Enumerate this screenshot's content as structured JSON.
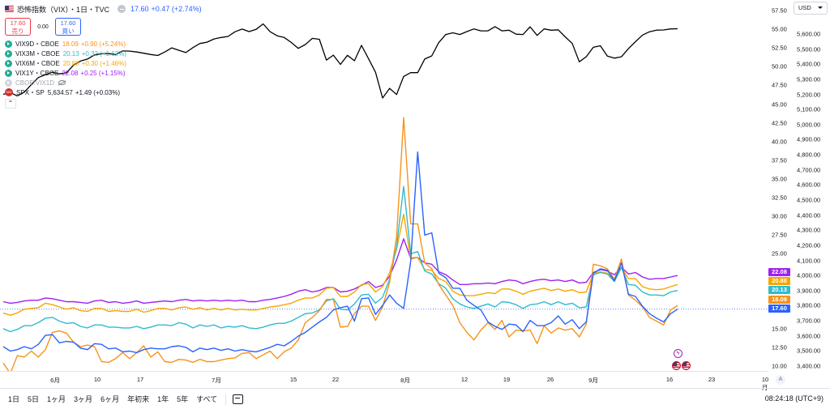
{
  "header": {
    "title": "恐怖指数（VIX）・1日・TVC",
    "price": "17.60",
    "change": "+0.47 (+2.74%)",
    "sell_price": "17.60",
    "sell_label": "売り",
    "spread": "0.00",
    "buy_price": "17.60",
    "buy_label": "買い"
  },
  "legend": [
    {
      "name": "VIX9D・CBOE",
      "value": "18.09",
      "change": "+0.90 (+5.24%)",
      "color": "#f7931a"
    },
    {
      "name": "VIX3M・CBOE",
      "value": "20.13",
      "change": "+0.32 (+1.62%)",
      "color": "#2ebccd"
    },
    {
      "name": "VIX6M・CBOE",
      "value": "20.88",
      "change": "+0.30 (+1.46%)",
      "color": "#f7a600"
    },
    {
      "name": "VIX1Y・CBOE",
      "value": "22.08",
      "change": "+0.25 (+1.15%)",
      "color": "#a020f0"
    }
  ],
  "hidden_symbol": "CBOE:VIX1D",
  "spx": {
    "badge": "500",
    "name": "SPX・SP",
    "value": "5,634.57",
    "change": "+1.49 (+0.03%)"
  },
  "collapse_glyph": "⌃",
  "price_axis": {
    "currency": "USD",
    "left_ticks": [
      "57.50",
      "55.00",
      "52.50",
      "50.00",
      "47.50",
      "45.00",
      "42.50",
      "40.00",
      "37.50",
      "35.00",
      "32.50",
      "30.00",
      "27.50",
      "25.00",
      "22.50",
      "20.00",
      "17.50",
      "15.00",
      "12.50",
      "10.00"
    ],
    "right_ticks": [
      "5,600.00",
      "5,500.00",
      "5,400.00",
      "5,300.00",
      "5,200.00",
      "5,100.00",
      "5,000.00",
      "4,900.00",
      "4,800.00",
      "4,700.00",
      "4,600.00",
      "4,500.00",
      "4,400.00",
      "4,300.00",
      "4,200.00",
      "4,100.00",
      "4,000.00",
      "3,900.00",
      "3,800.00",
      "3,700.00",
      "3,600.00",
      "3,500.00",
      "3,400.00"
    ],
    "top_partial": "5,700.00",
    "tags": [
      {
        "text": "22.08",
        "color": "#a020f0"
      },
      {
        "text": "20.88",
        "color": "#f7a600"
      },
      {
        "text": "20.13",
        "color": "#2ebccd"
      },
      {
        "text": "18.09",
        "color": "#f7931a"
      },
      {
        "text": "17.60",
        "color": "#2962ff"
      }
    ]
  },
  "time_axis": [
    "6月",
    "10",
    "17",
    "7月",
    "15",
    "22",
    "8月",
    "12",
    "19",
    "26",
    "9月",
    "16",
    "23",
    "10月"
  ],
  "auto_scale": "A",
  "bottom_bar": {
    "ranges": [
      "1日",
      "5日",
      "1ヶ月",
      "3ヶ月",
      "6ヶ月",
      "年初来",
      "1年",
      "5年",
      "すべて"
    ],
    "clock": "08:24:18 (UTC+9)"
  },
  "event_glyph": "ϟ",
  "chart_data": {
    "type": "line",
    "x_labels": [
      "6月",
      "10",
      "17",
      "7月",
      "15",
      "22",
      "8月",
      "12",
      "19",
      "26",
      "9月",
      "16",
      "23",
      "10月"
    ],
    "y_left_range": [
      9,
      58.5
    ],
    "y_right_range": [
      3380,
      5720
    ],
    "series": [
      {
        "name": "VIX",
        "color": "#2962ff",
        "values": [
          12.6,
          12.0,
          12.2,
          12.6,
          12.3,
          12.9,
          14.1,
          14.2,
          13.1,
          13.3,
          13.2,
          12.4,
          12.2,
          13.0,
          12.9,
          12.3,
          12.4,
          11.9,
          12.0,
          11.8,
          12.2,
          12.4,
          12.3,
          12.3,
          12.6,
          12.7,
          12.5,
          11.9,
          12.4,
          12.2,
          12.4,
          12.1,
          12.3,
          12.0,
          12.2,
          12.0,
          11.9,
          12.2,
          12.5,
          12.9,
          12.7,
          13.3,
          14.0,
          14.5,
          15.2,
          15.9,
          16.5,
          17.5,
          17.8,
          18.0,
          16.0,
          19.0,
          19.1,
          16.9,
          18.1,
          19.5,
          18.4,
          17.7,
          24.0,
          38.6,
          27.5,
          27.8,
          22.4,
          21.8,
          20.4,
          20.4,
          18.8,
          18.1,
          17.5,
          15.9,
          15.3,
          14.9,
          15.6,
          15.5,
          14.6,
          16.1,
          15.4,
          15.4,
          15.8,
          16.7,
          15.6,
          16.2,
          15.0,
          15.9,
          22.4,
          23.0,
          22.8,
          21.4,
          23.8,
          19.6,
          19.3,
          18.0,
          17.0,
          16.4,
          15.9,
          17.0,
          17.6
        ],
        "axis": "left"
      },
      {
        "name": "VIX9D",
        "color": "#f7931a",
        "values": [
          10.4,
          9.0,
          11.4,
          11.2,
          12.0,
          11.2,
          12.2,
          14.5,
          14.7,
          14.4,
          13.2,
          12.6,
          12.8,
          12.6,
          10.6,
          10.5,
          11.0,
          11.8,
          11.0,
          11.8,
          12.7,
          11.2,
          11.9,
          10.6,
          10.5,
          10.9,
          10.8,
          10.5,
          10.9,
          10.6,
          10.6,
          10.8,
          11.0,
          11.1,
          11.7,
          11.8,
          11.0,
          11.5,
          12.0,
          11.0,
          11.9,
          12.4,
          13.5,
          15.8,
          16.5,
          17.4,
          18.9,
          18.9,
          15.2,
          15.3,
          17.0,
          18.0,
          18.0,
          16.1,
          17.9,
          21.2,
          27.3,
          43.2,
          29.0,
          29.0,
          23.8,
          23.0,
          20.9,
          19.5,
          18.1,
          15.8,
          14.5,
          13.5,
          14.8,
          15.8,
          14.9,
          16.1,
          13.9,
          14.8,
          14.7,
          14.8,
          13.0,
          15.4,
          14.4,
          15.1,
          14.8,
          15.0,
          13.9,
          15.6,
          23.6,
          23.4,
          23.0,
          21.6,
          24.3,
          19.5,
          18.8,
          17.9,
          16.5,
          16.0,
          15.5,
          17.5,
          18.1
        ],
        "axis": "left"
      },
      {
        "name": "VIX3M",
        "color": "#2ebccd",
        "values": [
          15.0,
          14.6,
          14.9,
          15.4,
          15.4,
          15.8,
          16.4,
          16.5,
          16.0,
          15.7,
          15.8,
          15.3,
          15.1,
          15.5,
          15.5,
          15.2,
          15.2,
          15.1,
          15.1,
          15.3,
          15.0,
          15.2,
          15.5,
          15.5,
          15.4,
          15.8,
          15.6,
          15.1,
          15.5,
          15.3,
          15.5,
          15.1,
          15.3,
          15.2,
          15.4,
          15.1,
          15.0,
          15.2,
          15.5,
          15.7,
          15.7,
          16.0,
          16.5,
          17.0,
          17.1,
          17.5,
          18.7,
          19.0,
          17.6,
          17.5,
          18.3,
          19.5,
          19.6,
          18.4,
          19.2,
          21.6,
          26.0,
          34.0,
          25.0,
          25.3,
          22.7,
          22.3,
          21.0,
          20.4,
          19.0,
          18.3,
          17.9,
          17.7,
          18.0,
          18.3,
          17.9,
          18.6,
          18.5,
          18.2,
          17.7,
          18.2,
          18.3,
          18.6,
          18.2,
          18.6,
          18.2,
          18.4,
          17.8,
          17.9,
          22.2,
          22.5,
          22.3,
          21.3,
          23.2,
          20.9,
          20.8,
          19.9,
          19.5,
          19.5,
          19.4,
          19.9,
          20.1
        ],
        "axis": "left"
      },
      {
        "name": "VIX6M",
        "color": "#f7a600",
        "values": [
          17.1,
          16.8,
          17.1,
          17.6,
          17.7,
          17.8,
          18.4,
          18.2,
          17.9,
          17.6,
          17.8,
          17.4,
          17.3,
          17.7,
          17.7,
          17.3,
          17.4,
          17.3,
          17.3,
          17.6,
          17.2,
          17.4,
          17.7,
          17.7,
          17.5,
          17.8,
          17.9,
          17.6,
          17.8,
          17.5,
          17.7,
          17.5,
          17.7,
          17.5,
          17.6,
          17.5,
          17.5,
          17.7,
          17.9,
          18.0,
          18.2,
          18.4,
          18.8,
          19.1,
          19.1,
          19.5,
          20.4,
          20.5,
          19.3,
          19.3,
          19.9,
          20.9,
          21.0,
          19.9,
          20.6,
          22.5,
          25.6,
          30.3,
          24.3,
          24.5,
          22.9,
          22.8,
          21.7,
          21.3,
          20.0,
          19.5,
          19.4,
          19.4,
          19.6,
          19.8,
          19.7,
          20.3,
          20.3,
          20.0,
          19.6,
          20.0,
          20.2,
          20.4,
          20.1,
          20.3,
          20.0,
          20.2,
          19.8,
          19.9,
          22.4,
          22.6,
          22.4,
          21.5,
          23.1,
          21.7,
          21.7,
          20.6,
          20.3,
          20.2,
          20.3,
          20.6,
          20.9
        ],
        "axis": "left"
      },
      {
        "name": "VIX1Y",
        "color": "#a020f0",
        "values": [
          18.6,
          18.4,
          18.5,
          18.7,
          18.8,
          18.8,
          19.1,
          19.0,
          18.8,
          18.6,
          18.6,
          18.5,
          18.4,
          18.7,
          18.8,
          18.5,
          18.6,
          18.4,
          18.5,
          18.7,
          18.4,
          18.5,
          18.6,
          18.7,
          18.6,
          18.8,
          18.9,
          18.7,
          18.8,
          18.7,
          18.8,
          18.7,
          18.8,
          18.7,
          18.8,
          18.6,
          18.6,
          18.8,
          18.9,
          19.1,
          19.3,
          19.6,
          20.0,
          20.2,
          19.9,
          20.1,
          20.5,
          20.5,
          19.9,
          20.0,
          20.3,
          20.8,
          21.3,
          20.5,
          20.8,
          22.0,
          24.2,
          27.0,
          24.4,
          24.5,
          23.8,
          23.6,
          22.6,
          22.2,
          21.5,
          20.9,
          20.9,
          21.0,
          21.0,
          21.1,
          21.0,
          21.3,
          21.5,
          21.4,
          21.0,
          21.3,
          21.5,
          21.6,
          21.4,
          21.5,
          21.3,
          21.5,
          21.1,
          21.2,
          22.5,
          22.9,
          22.7,
          22.2,
          23.2,
          22.3,
          22.5,
          21.9,
          21.6,
          21.7,
          21.7,
          21.9,
          22.1
        ],
        "axis": "left"
      },
      {
        "name": "SPX",
        "color": "#000000",
        "values": [
          5200,
          5212,
          5190,
          5215,
          5265,
          5312,
          5330,
          5347,
          5336,
          5343,
          5394,
          5421,
          5434,
          5462,
          5469,
          5470,
          5464,
          5488,
          5487,
          5481,
          5473,
          5464,
          5458,
          5481,
          5508,
          5492,
          5477,
          5510,
          5537,
          5546,
          5567,
          5577,
          5584,
          5615,
          5633,
          5616,
          5631,
          5667,
          5615,
          5588,
          5577,
          5544,
          5505,
          5530,
          5571,
          5565,
          5427,
          5460,
          5399,
          5459,
          5423,
          5525,
          5436,
          5347,
          5176,
          5240,
          5199,
          5319,
          5344,
          5344,
          5434,
          5455,
          5543,
          5597,
          5608,
          5597,
          5616,
          5634,
          5621,
          5621,
          5649,
          5621,
          5625,
          5599,
          5597,
          5648,
          5591,
          5634,
          5625,
          5628,
          5581,
          5537,
          5416,
          5450,
          5512,
          5522,
          5454,
          5440,
          5449,
          5503,
          5549,
          5593,
          5615,
          5626,
          5627,
          5634,
          5635
        ],
        "axis": "right"
      }
    ],
    "grid": false,
    "legend": "top-left"
  }
}
